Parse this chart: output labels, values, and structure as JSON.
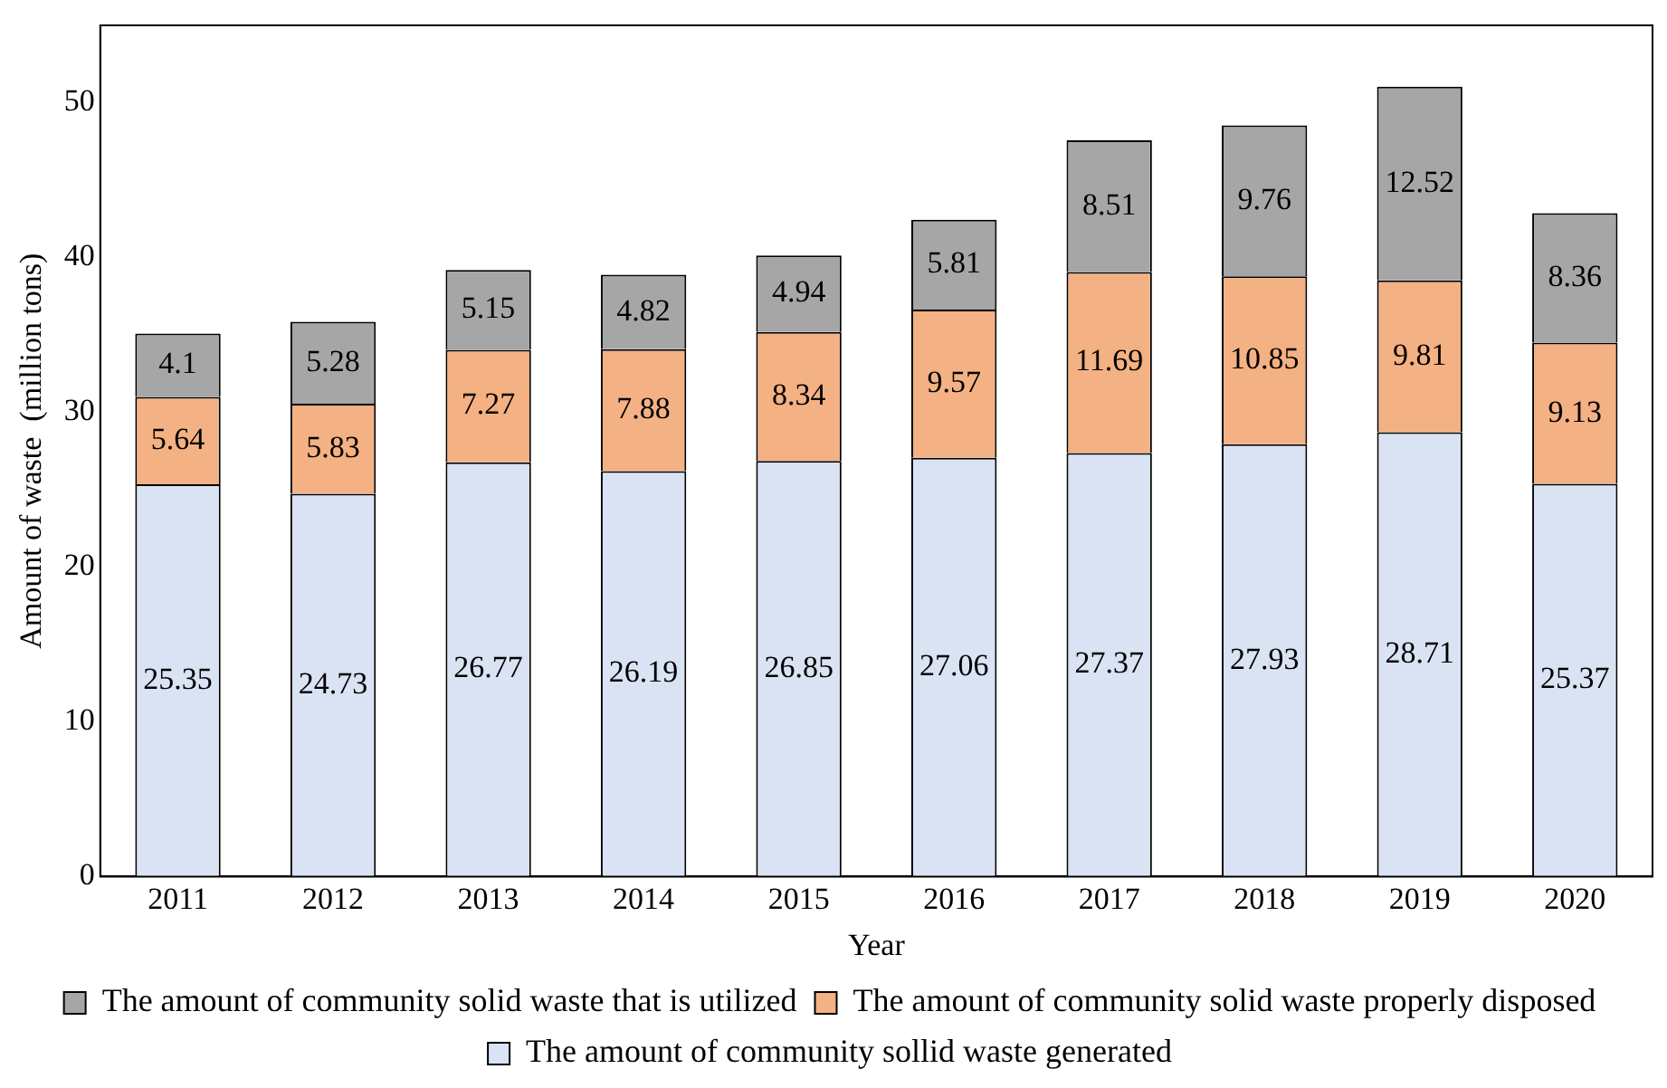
{
  "chart_data": {
    "type": "bar",
    "stacked": true,
    "xlabel": "Year",
    "ylabel": "Amount of waste  (million tons)",
    "categories": [
      "2011",
      "2012",
      "2013",
      "2014",
      "2015",
      "2016",
      "2017",
      "2018",
      "2019",
      "2020"
    ],
    "series": [
      {
        "name": "The amount of community sollid waste generated",
        "color": "#dae3f3",
        "values": [
          25.35,
          24.73,
          26.77,
          26.19,
          26.85,
          27.06,
          27.37,
          27.93,
          28.71,
          25.37
        ]
      },
      {
        "name": "The amount of community solid waste properly disposed",
        "color": "#f4b183",
        "values": [
          5.64,
          5.83,
          7.27,
          7.88,
          8.34,
          9.57,
          11.69,
          10.85,
          9.81,
          9.13
        ]
      },
      {
        "name": "The amount of community solid waste that is utilized",
        "color": "#a6a6a6",
        "values": [
          4.1,
          5.28,
          5.15,
          4.82,
          4.94,
          5.81,
          8.51,
          9.76,
          12.52,
          8.36
        ]
      }
    ],
    "ylim": [
      0,
      55
    ],
    "yticks": [
      0,
      10,
      20,
      30,
      40,
      50
    ],
    "grid": false,
    "legend": "bottom",
    "data_labels": true
  }
}
